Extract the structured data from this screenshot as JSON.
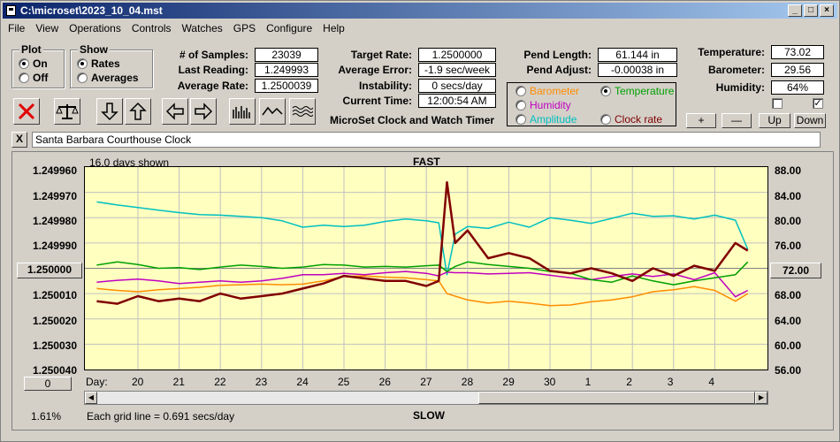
{
  "window": {
    "title": "C:\\microset\\2023_10_04.mst"
  },
  "menu": [
    "File",
    "View",
    "Operations",
    "Controls",
    "Watches",
    "GPS",
    "Configure",
    "Help"
  ],
  "plot_group": {
    "title": "Plot",
    "on": "On",
    "off": "Off",
    "selected": "On"
  },
  "show_group": {
    "title": "Show",
    "rates": "Rates",
    "averages": "Averages",
    "selected": "Rates"
  },
  "stats": {
    "samples_label": "# of Samples:",
    "samples": "23039",
    "last_label": "Last Reading:",
    "last": "1.249993",
    "avg_label": "Average Rate:",
    "avg": "1.2500039",
    "target_label": "Target Rate:",
    "target": "1.2500000",
    "error_label": "Average Error:",
    "error": "-1.9 sec/week",
    "instab_label": "Instability:",
    "instab": "0 secs/day",
    "time_label": "Current Time:",
    "time": "12:00:54 AM",
    "pend_len_label": "Pend Length:",
    "pend_len": "61.144 in",
    "pend_adj_label": "Pend Adjust:",
    "pend_adj": "-0.00038 in",
    "temp_label": "Temperature:",
    "temp": "73.02",
    "baro_label": "Barometer:",
    "baro": "29.56",
    "hum_label": "Humidity:",
    "hum": "64%"
  },
  "app_title": "MicroSet Clock and Watch Timer",
  "sensors": {
    "barometer": "Barometer",
    "temperature": "Temperature",
    "humidity": "Humidity",
    "amplitude": "Amplitude",
    "clock_rate": "Clock rate",
    "colors": {
      "barometer": "#ff8c00",
      "temperature": "#00a000",
      "humidity": "#c000c0",
      "amplitude": "#00c0c0",
      "clock_rate": "#800000"
    },
    "selected": "Temperature"
  },
  "small_buttons": {
    "plus": "+",
    "minus": "—",
    "up": "Up",
    "down": "Down",
    "close_x": "X"
  },
  "checkboxes": {
    "left": false,
    "right": true
  },
  "clock_name": "Santa Barbara Courthouse Clock",
  "chart": {
    "days_shown": "16.0 days shown",
    "fast": "FAST",
    "slow": "SLOW",
    "grid_note": "Each grid line = 0.691 secs/day",
    "percent": "1.61%",
    "day_label": "Day:",
    "center_btn": "1.250000",
    "center_right_btn": "72.00",
    "zero_btn": "0",
    "left_ticks": [
      "1.249960",
      "1.249970",
      "1.249980",
      "1.249990",
      "1.250010",
      "1.250020",
      "1.250030",
      "1.250040"
    ],
    "right_ticks": [
      "88.00",
      "84.00",
      "80.00",
      "76.00",
      "68.00",
      "64.00",
      "60.00",
      "56.00"
    ],
    "x_ticks": [
      "20",
      "21",
      "22",
      "23",
      "24",
      "25",
      "26",
      "27",
      "28",
      "29",
      "30",
      "1",
      "2",
      "3",
      "4"
    ]
  },
  "chart_data": {
    "type": "line",
    "x_unit": "day",
    "x": [
      19,
      19.5,
      20,
      20.5,
      21,
      21.5,
      22,
      22.5,
      23,
      23.5,
      24,
      24.5,
      25,
      25.5,
      26,
      26.5,
      27,
      27.3,
      27.5,
      27.7,
      28,
      28.5,
      29,
      29.5,
      30,
      30.5,
      1,
      1.5,
      2,
      2.5,
      3,
      3.5,
      4,
      4.5,
      4.8
    ],
    "y_left_range": [
      1.24996,
      1.25004
    ],
    "y_right_range": [
      56,
      88
    ],
    "series": [
      {
        "name": "Clock rate",
        "axis": "left",
        "color": "#800000",
        "values": [
          1.250013,
          1.250014,
          1.250011,
          1.250013,
          1.250012,
          1.250013,
          1.25001,
          1.250012,
          1.250011,
          1.25001,
          1.250008,
          1.250006,
          1.250003,
          1.250004,
          1.250005,
          1.250005,
          1.250007,
          1.250005,
          1.249966,
          1.24999,
          1.249985,
          1.249996,
          1.249994,
          1.249996,
          1.250001,
          1.250002,
          1.25,
          1.250002,
          1.250005,
          1.25,
          1.250003,
          1.249999,
          1.250001,
          1.24999,
          1.249993
        ]
      },
      {
        "name": "Temperature",
        "axis": "right",
        "color": "#00a000",
        "values": [
          72.5,
          73,
          72.6,
          72,
          72.1,
          71.8,
          72.2,
          72.5,
          72.3,
          72,
          72.2,
          72.6,
          72.5,
          72.2,
          72.3,
          72.2,
          72.4,
          72.5,
          71.5,
          72.3,
          73,
          72.6,
          72.3,
          72,
          71.5,
          71.2,
          70.2,
          69.8,
          70.8,
          70,
          69.4,
          70,
          70.5,
          71,
          73
        ]
      },
      {
        "name": "Humidity",
        "axis": "right",
        "color": "#c000c0",
        "values": [
          69.8,
          70.1,
          70.3,
          70,
          69.6,
          69.8,
          70,
          69.8,
          70,
          70.4,
          71,
          71,
          71.2,
          71,
          71.3,
          71.5,
          71.2,
          70.8,
          71.4,
          71.3,
          71.3,
          71.1,
          71.2,
          71.3,
          70.9,
          70.5,
          70.2,
          70.7,
          71.1,
          70.7,
          71.1,
          70.2,
          71.3,
          67.5,
          68.5
        ]
      },
      {
        "name": "Barometer",
        "axis": "right",
        "color": "#ff8c00",
        "values": [
          68.8,
          68.5,
          68.3,
          68.6,
          68.8,
          69,
          69.3,
          69.4,
          69.5,
          69.4,
          69.5,
          70,
          70.7,
          70.8,
          70.6,
          70.5,
          70.2,
          70,
          68,
          67.6,
          67,
          66.5,
          66.8,
          66.5,
          66.1,
          66.2,
          66.7,
          67,
          67.5,
          68.3,
          68.6,
          69.1,
          68.5,
          66.8,
          68
        ]
      },
      {
        "name": "Amplitude",
        "axis": "right",
        "color": "#00c0c0",
        "values": [
          82.5,
          82,
          81.6,
          81.2,
          80.8,
          80.5,
          80.4,
          80.2,
          80,
          79.5,
          78.5,
          78.8,
          78.6,
          78.8,
          79.4,
          79.8,
          79.5,
          79.2,
          71,
          77.4,
          78.6,
          78.3,
          79.3,
          78.5,
          80,
          79.6,
          79.1,
          79.9,
          80.7,
          80.2,
          80.3,
          79.8,
          80.4,
          79.6,
          75
        ]
      }
    ]
  }
}
